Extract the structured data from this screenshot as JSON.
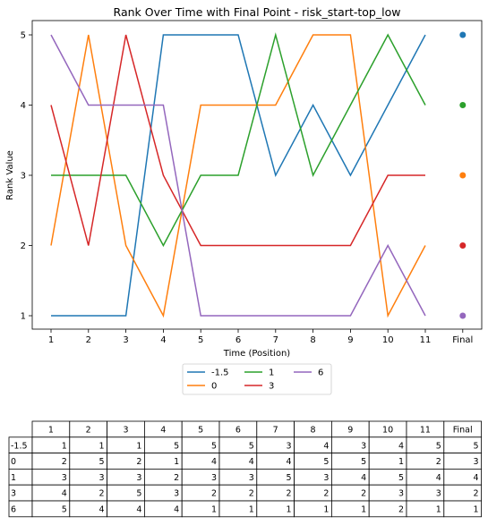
{
  "chart_data": {
    "type": "line",
    "title": "Rank Over Time with Final Point - risk_start-top_low",
    "xlabel": "Time (Position)",
    "ylabel": "Rank Value",
    "x": [
      1,
      2,
      3,
      4,
      5,
      6,
      7,
      8,
      9,
      10,
      11
    ],
    "x_ticks": [
      "1",
      "2",
      "3",
      "4",
      "5",
      "6",
      "7",
      "8",
      "9",
      "10",
      "11",
      "Final"
    ],
    "y_ticks": [
      "1",
      "2",
      "3",
      "4",
      "5"
    ],
    "ylim": [
      1,
      5
    ],
    "grid": false,
    "legend_position": "below",
    "series": [
      {
        "name": "-1.5",
        "color": "#1f77b4",
        "values": [
          1,
          1,
          1,
          5,
          5,
          5,
          3,
          4,
          3,
          4,
          5
        ],
        "final": 5
      },
      {
        "name": "0",
        "color": "#ff7f0e",
        "values": [
          2,
          5,
          2,
          1,
          4,
          4,
          4,
          5,
          5,
          1,
          2
        ],
        "final": 3
      },
      {
        "name": "1",
        "color": "#2ca02c",
        "values": [
          3,
          3,
          3,
          2,
          3,
          3,
          5,
          3,
          4,
          5,
          4
        ],
        "final": 4
      },
      {
        "name": "3",
        "color": "#d62728",
        "values": [
          4,
          2,
          5,
          3,
          2,
          2,
          2,
          2,
          2,
          3,
          3
        ],
        "final": 2
      },
      {
        "name": "6",
        "color": "#9467bd",
        "values": [
          5,
          4,
          4,
          4,
          1,
          1,
          1,
          1,
          1,
          2,
          1
        ],
        "final": 1
      }
    ],
    "table": {
      "header": [
        "1",
        "2",
        "3",
        "4",
        "5",
        "6",
        "7",
        "8",
        "9",
        "10",
        "11",
        "Final"
      ],
      "rows": [
        {
          "label": "-1.5",
          "cells": [
            "1",
            "1",
            "1",
            "5",
            "5",
            "5",
            "3",
            "4",
            "3",
            "4",
            "5",
            "5"
          ]
        },
        {
          "label": "0",
          "cells": [
            "2",
            "5",
            "2",
            "1",
            "4",
            "4",
            "4",
            "5",
            "5",
            "1",
            "2",
            "3"
          ]
        },
        {
          "label": "1",
          "cells": [
            "3",
            "3",
            "3",
            "2",
            "3",
            "3",
            "5",
            "3",
            "4",
            "5",
            "4",
            "4"
          ]
        },
        {
          "label": "3",
          "cells": [
            "4",
            "2",
            "5",
            "3",
            "2",
            "2",
            "2",
            "2",
            "2",
            "3",
            "3",
            "2"
          ]
        },
        {
          "label": "6",
          "cells": [
            "5",
            "4",
            "4",
            "4",
            "1",
            "1",
            "1",
            "1",
            "1",
            "2",
            "1",
            "1"
          ]
        }
      ]
    }
  }
}
